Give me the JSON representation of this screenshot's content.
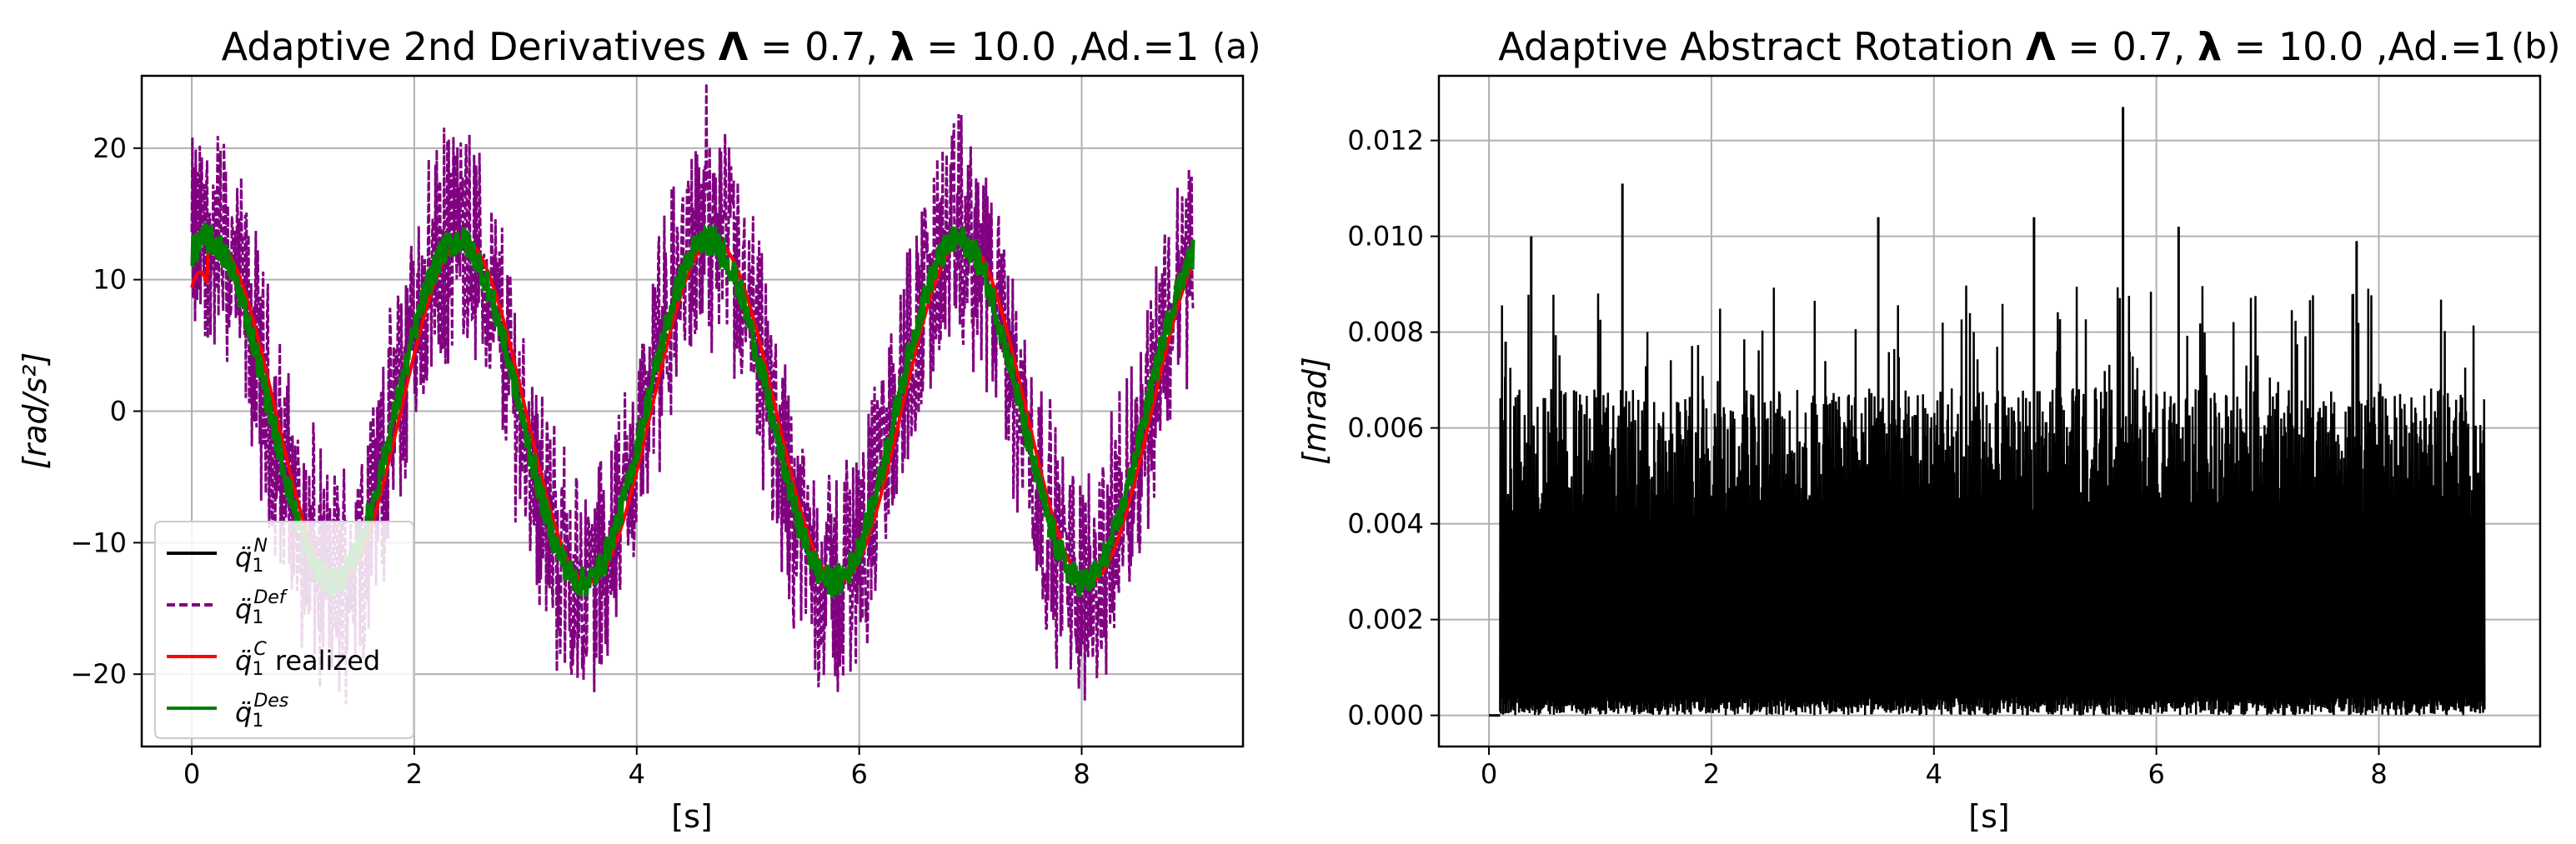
{
  "chart_data": [
    {
      "type": "line",
      "panel_label": "(a)",
      "title": "Adaptive 2nd Derivatives Λ = 0.7, λ = 10.0 ,Ad.=1",
      "title_parts": {
        "lead": "Adaptive 2nd Derivatives ",
        "Lambda": "Λ",
        "lambda_value": " = 0.7, ",
        "lambda": "λ",
        "rest": " = 10.0 ,Ad.=1"
      },
      "xlabel": "[s]",
      "ylabel": "[rad/s²]",
      "xlim": [
        -0.45,
        9.45
      ],
      "ylim": [
        -25.5,
        25.5
      ],
      "xticks": [
        0,
        2,
        4,
        6,
        8
      ],
      "yticks": [
        -20,
        -10,
        0,
        10,
        20
      ],
      "ytick_labels": [
        "−20",
        "−10",
        "0",
        "10",
        "20"
      ],
      "grid": true,
      "legend_position": "lower-left",
      "signal": {
        "amplitude": 13,
        "period_s": 2.25,
        "start_value": 12,
        "duration_s": 9.0,
        "noise_band_def": 8,
        "noise_band_des": 1.2
      },
      "series": [
        {
          "name": "q̈1^N",
          "base": "q̈",
          "sub": "1",
          "sup": "N",
          "suffix": "",
          "color": "#000000",
          "dash": "solid",
          "kind": "nominal"
        },
        {
          "name": "q̈1^Def",
          "base": "q̈",
          "sub": "1",
          "sup": "Def",
          "suffix": "",
          "color": "#800080",
          "dash": "dashed",
          "kind": "def"
        },
        {
          "name": "q̈1^C realized",
          "base": "q̈",
          "sub": "1",
          "sup": "C",
          "suffix": " realized",
          "color": "#ff0000",
          "dash": "solid",
          "kind": "realized"
        },
        {
          "name": "q̈1^Des",
          "base": "q̈",
          "sub": "1",
          "sup": "Des",
          "suffix": "",
          "color": "#008000",
          "dash": "solid",
          "kind": "des"
        }
      ]
    },
    {
      "type": "line",
      "panel_label": "(b)",
      "title": "Adaptive Abstract Rotation Λ = 0.7, λ = 10.0 ,Ad.=1",
      "title_parts": {
        "lead": "Adaptive Abstract Rotation ",
        "Lambda": "Λ",
        "lambda_value": " = 0.7, ",
        "lambda": "λ",
        "rest": " = 10.0 ,Ad.=1"
      },
      "xlabel": "[s]",
      "ylabel": "[mrad]",
      "xlim": [
        -0.45,
        9.45
      ],
      "ylim": [
        -0.00065,
        0.01335
      ],
      "xticks": [
        0,
        2,
        4,
        6,
        8
      ],
      "yticks": [
        0.0,
        0.002,
        0.004,
        0.006,
        0.008,
        0.01,
        0.012
      ],
      "ytick_labels": [
        "0.000",
        "0.002",
        "0.004",
        "0.006",
        "0.008",
        "0.010",
        "0.012"
      ],
      "grid": true,
      "series": [
        {
          "name": "abstract rotation",
          "color": "#000000",
          "start_s": 0.1,
          "end_s": 8.95,
          "typical_peak": 0.0065,
          "max_peak": 0.0127,
          "max_peak_at_s": 5.7,
          "notable_peaks": [
            [
              0.15,
              0.0078
            ],
            [
              0.38,
              0.01
            ],
            [
              1.2,
              0.0111
            ],
            [
              3.5,
              0.0104
            ],
            [
              4.9,
              0.0104
            ],
            [
              5.7,
              0.0127
            ],
            [
              6.2,
              0.0102
            ],
            [
              7.8,
              0.0099
            ]
          ]
        }
      ]
    }
  ]
}
